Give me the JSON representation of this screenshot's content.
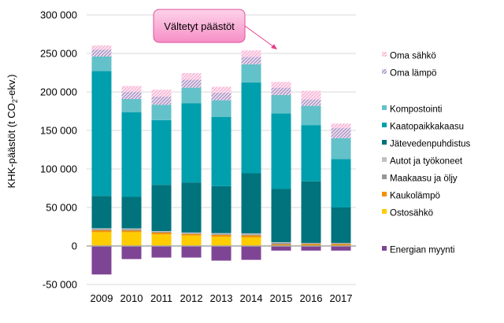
{
  "chart_data": {
    "type": "bar",
    "stacked": true,
    "title": "",
    "xlabel": "",
    "ylabel_parts": [
      "KHK-päästöt (t CO",
      "2",
      "-ekv.)"
    ],
    "ylim": [
      -50000,
      300000
    ],
    "yticks": [
      -50000,
      0,
      50000,
      100000,
      150000,
      200000,
      250000,
      300000
    ],
    "ytick_labels": [
      "-50 000",
      "0",
      "50 000",
      "100 000",
      "150 000",
      "200 000",
      "250 000",
      "300 000"
    ],
    "grid": true,
    "legend_position": "right",
    "categories": [
      "2009",
      "2010",
      "2011",
      "2012",
      "2013",
      "2014",
      "2015",
      "2016",
      "2017"
    ],
    "series": [
      {
        "name": "Ostosähkö",
        "color": "#ffcc00",
        "values": [
          18000,
          18000,
          15000,
          13500,
          12000,
          11000,
          500,
          500,
          500
        ]
      },
      {
        "name": "Kaukolämpö",
        "color": "#f39200",
        "values": [
          2300,
          2000,
          2400,
          2000,
          2400,
          2700,
          1500,
          2000,
          2000
        ]
      },
      {
        "name": "Maakaasu ja öljy",
        "color": "#969696",
        "values": [
          1400,
          1500,
          1000,
          1000,
          1200,
          1400,
          2000,
          1000,
          1000
        ]
      },
      {
        "name": "Autot ja työkoneet",
        "color": "#c0c0c0",
        "values": [
          1300,
          1300,
          1000,
          1000,
          1100,
          1300,
          1000,
          500,
          500
        ]
      },
      {
        "name": "Jätevedenpuhdistus",
        "color": "#00737c",
        "values": [
          42000,
          41000,
          60000,
          65000,
          61000,
          78000,
          69000,
          80000,
          46000
        ]
      },
      {
        "name": "Kaatopaikkakaasu",
        "color": "#009fad",
        "values": [
          162000,
          110000,
          84000,
          103000,
          90000,
          118000,
          98000,
          73000,
          63000
        ]
      },
      {
        "name": "Kompostointi",
        "color": "#63c1c9",
        "values": [
          19000,
          17000,
          20000,
          20000,
          21500,
          23500,
          24000,
          25000,
          27000
        ]
      },
      {
        "name": "Oma lämpö",
        "color": "#a07cc0",
        "pattern": "hatch-purple",
        "values": [
          9000,
          9500,
          10500,
          10500,
          10000,
          9500,
          9500,
          8500,
          13000
        ]
      },
      {
        "name": "Oma sähkö",
        "color": "#f49ac8",
        "pattern": "hatch-pink",
        "values": [
          5500,
          7500,
          9000,
          8500,
          7500,
          8500,
          7500,
          11000,
          6000
        ]
      },
      {
        "name": "Energian myynti",
        "color": "#7f4595",
        "values": [
          -37000,
          -17000,
          -15000,
          -15000,
          -19000,
          -18000,
          -6000,
          -6000,
          -6000
        ]
      }
    ],
    "legend_order": [
      "Oma sähkö",
      "Oma lämpö",
      "Kompostointi",
      "Kaatopaikkakaasu",
      "Jätevedenpuhdistus",
      "Autot ja työkoneet",
      "Maakaasu ja öljy",
      "Kaukolämpö",
      "Ostosähkö",
      "Energian myynti"
    ],
    "annotations": [
      {
        "text": "Vältetyt päästöt",
        "points_to": "Oma sähkö / Oma lämpö"
      }
    ]
  }
}
